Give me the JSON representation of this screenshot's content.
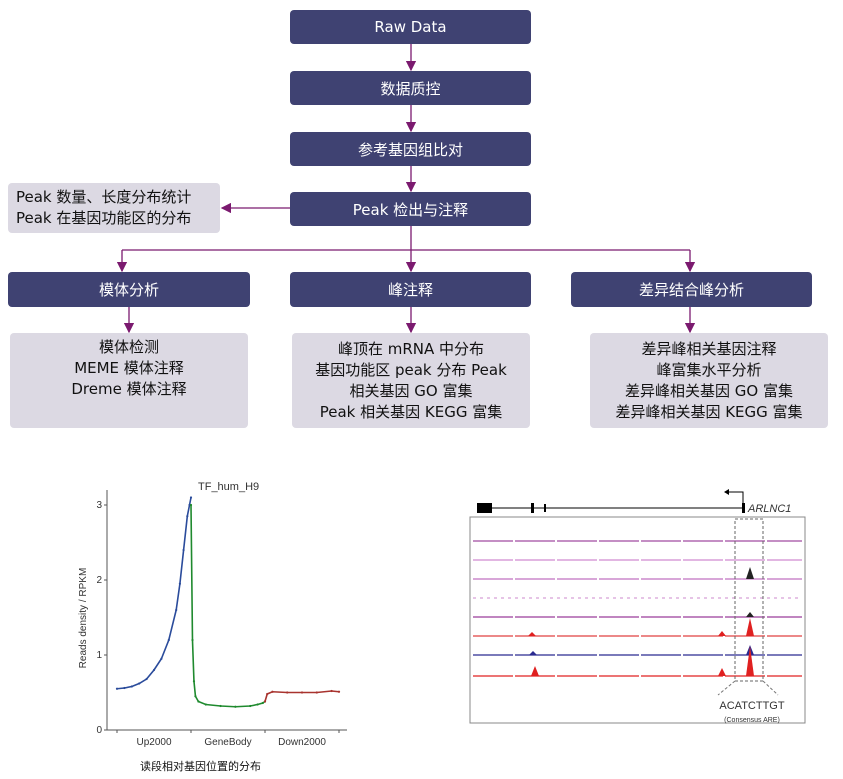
{
  "flow": {
    "raw": "Raw Data",
    "qc": "数据质控",
    "align": "参考基因组比对",
    "peak": "Peak 检出与注释",
    "peak_stats": [
      "Peak 数量、长度分布统计",
      "Peak 在基因功能区的分布"
    ],
    "branches": [
      {
        "title": "模体分析",
        "items": [
          "模体检测",
          "MEME 模体注释",
          "Dreme 模体注释"
        ]
      },
      {
        "title": "峰注释",
        "items": [
          "峰顶在 mRNA 中分布",
          "基因功能区 peak 分布 Peak",
          "相关基因 GO 富集",
          "Peak 相关基因 KEGG 富集"
        ]
      },
      {
        "title": "差异结合峰分析",
        "items": [
          "差异峰相关基因注释",
          "峰富集水平分析",
          "差异峰相关基因 GO 富集",
          "差异峰相关基因 KEGG 富集"
        ]
      }
    ],
    "colors": {
      "box": "#3f4272",
      "gray": "#dcd9e3",
      "arrow": "#7b1a6f"
    }
  },
  "chart_data": {
    "type": "line",
    "title": "TF_hum_H9",
    "ylabel": "Reads density / RPKM",
    "xlabel": "",
    "ylim": [
      0,
      3.2
    ],
    "yticks": [
      "0",
      "1",
      "2",
      "3"
    ],
    "categories": [
      "Up2000",
      "GeneBody",
      "Down2000"
    ],
    "series": [
      {
        "segment": "Up2000",
        "color": "#2a4b9b",
        "x": [
          0,
          0.1,
          0.2,
          0.3,
          0.4,
          0.5,
          0.6,
          0.7,
          0.8,
          0.85,
          0.9,
          0.95,
          0.98,
          1.0
        ],
        "y": [
          0.55,
          0.56,
          0.58,
          0.62,
          0.68,
          0.8,
          0.95,
          1.2,
          1.6,
          1.95,
          2.4,
          2.85,
          3.0,
          3.1
        ]
      },
      {
        "segment": "GeneBody",
        "color": "#1f8a2e",
        "x": [
          1.0,
          1.02,
          1.04,
          1.06,
          1.1,
          1.2,
          1.4,
          1.6,
          1.8,
          1.9,
          1.97,
          2.0
        ],
        "y": [
          3.0,
          1.2,
          0.65,
          0.45,
          0.38,
          0.34,
          0.32,
          0.31,
          0.32,
          0.34,
          0.36,
          0.38
        ]
      },
      {
        "segment": "Down2000",
        "color": "#a8332e",
        "x": [
          2.0,
          2.03,
          2.1,
          2.3,
          2.5,
          2.7,
          2.9,
          3.0
        ],
        "y": [
          0.38,
          0.48,
          0.51,
          0.5,
          0.5,
          0.5,
          0.52,
          0.51
        ]
      }
    ],
    "caption": "读段相对基因位置的分布"
  },
  "browser": {
    "gene": "ARLNC1",
    "motif": "ACATCTTGT",
    "motif_note": "(Consensus ARE)"
  }
}
